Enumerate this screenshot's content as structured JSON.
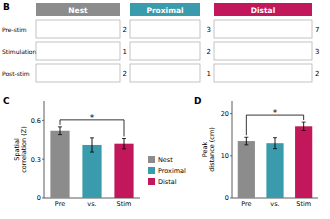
{
  "chart_data": [
    {
      "type": "heatmap",
      "title": "B",
      "categories": [
        "Nest",
        "Proximal",
        "Distal"
      ],
      "colors": [
        "#8C8C8C",
        "#3A9BAD",
        "#C2185B"
      ],
      "rows": [
        "Pre-stim",
        "Stimulation",
        "Post-stim"
      ],
      "annotations": [
        [
          2,
          3,
          7
        ],
        [
          1,
          2,
          3
        ],
        [
          2,
          1,
          2
        ]
      ]
    },
    {
      "type": "bar",
      "title": "C",
      "categories": [
        "Pre",
        "vs.",
        "Stim"
      ],
      "values": [
        0.52,
        0.41,
        0.42
      ],
      "errors": [
        0.03,
        0.055,
        0.04
      ],
      "colors": [
        "#8C8C8C",
        "#3A9BAD",
        "#C2185B"
      ],
      "ylabel": "Spatial\ncorrelation (Z)",
      "ylim": [
        0,
        0.75
      ],
      "yticks": [
        0,
        0.3,
        0.6
      ],
      "annotations": [
        "*"
      ],
      "legend": "right",
      "legend_labels": [
        "Nest",
        "Proximal",
        "Distal"
      ]
    },
    {
      "type": "bar",
      "title": "D",
      "categories": [
        "Pre",
        "vs.",
        "Stim"
      ],
      "values": [
        13.5,
        13.0,
        17.0
      ],
      "errors": [
        0.9,
        1.3,
        1.0
      ],
      "colors": [
        "#8C8C8C",
        "#3A9BAD",
        "#C2185B"
      ],
      "ylabel": "Peak\ndistance (cm)",
      "ylim": [
        0,
        23
      ],
      "yticks": [
        0,
        10,
        20
      ],
      "annotations": [
        "*"
      ]
    }
  ]
}
